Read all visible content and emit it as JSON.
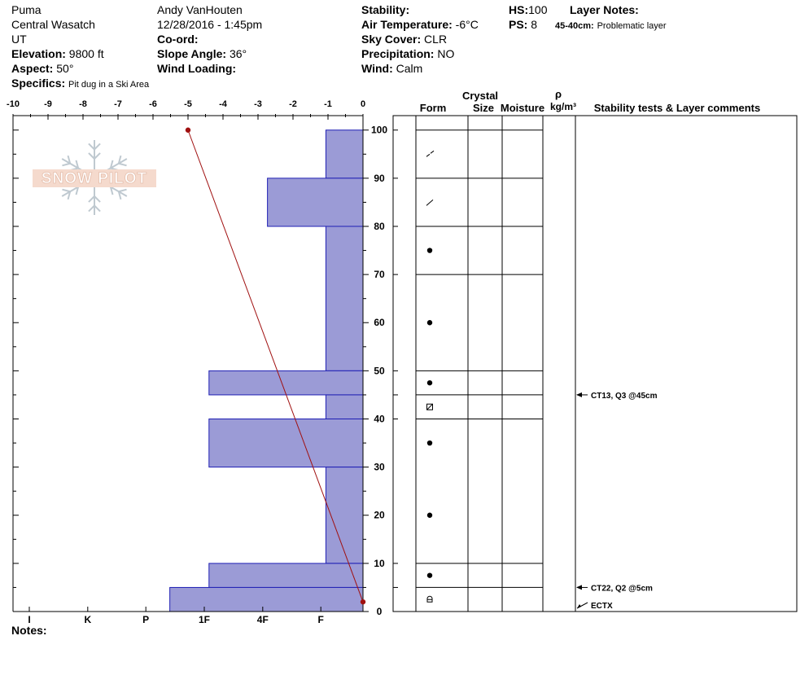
{
  "header": {
    "location": "Puma",
    "range": "Central Wasatch",
    "state": "UT",
    "elevation_label": "Elevation:",
    "elevation_value": "9800 ft",
    "aspect_label": "Aspect:",
    "aspect_value": "50°",
    "specifics_label": "Specifics:",
    "specifics_value": "Pit dug in a Ski Area",
    "observer": "Andy VanHouten",
    "datetime": "12/28/2016 - 1:45pm",
    "coord_label": "Co-ord:",
    "slope_label": "Slope Angle:",
    "slope_value": "36°",
    "wind_loading_label": "Wind Loading:",
    "stability_label": "Stability:",
    "air_temp_label": "Air Temperature:",
    "air_temp_value": "-6°C",
    "sky_label": "Sky Cover:",
    "sky_value": "CLR",
    "precip_label": "Precipitation:",
    "precip_value": "NO",
    "wind_label": "Wind:",
    "wind_value": "Calm",
    "hs_label": "HS:",
    "hs_value": "100",
    "ps_label": "PS:",
    "ps_value": "8",
    "layer_notes_label": "Layer Notes:",
    "layer_note_depth": "45-40cm:",
    "layer_note_text": "Problematic layer"
  },
  "columns": {
    "crystal": "Crystal",
    "form": "Form",
    "size": "Size",
    "moisture": "Moisture",
    "rho": "ρ",
    "density_unit": "kg/m³",
    "stability": "Stability tests & Layer comments"
  },
  "notes_label": "Notes:",
  "logo_text": "SNOW PILOT",
  "colors": {
    "hardness_fill": "#9b9bd6",
    "hardness_edge": "#1f1fb4",
    "temp_line": "#a01010"
  },
  "chart_data": {
    "type": "bar",
    "temp_axis": {
      "range": [
        -10,
        0
      ],
      "ticks": [
        "-10",
        "-9",
        "-8",
        "-7",
        "-6",
        "-5",
        "-4",
        "-3",
        "-2",
        "-1",
        "0"
      ]
    },
    "height_axis": {
      "range": [
        0,
        103
      ],
      "ticks": [
        "0",
        "10",
        "20",
        "30",
        "40",
        "50",
        "60",
        "70",
        "80",
        "90",
        "100"
      ]
    },
    "hardness_axis": {
      "labels": [
        "I",
        "K",
        "P",
        "1F",
        "4F",
        "F"
      ],
      "values": [
        10,
        8.33,
        6.67,
        5,
        3.33,
        1.67
      ]
    },
    "hardness_layers": [
      {
        "top": 100,
        "bottom": 90,
        "hardness": 1.06
      },
      {
        "top": 90,
        "bottom": 80,
        "hardness": 2.73
      },
      {
        "top": 80,
        "bottom": 50,
        "hardness": 1.06
      },
      {
        "top": 50,
        "bottom": 45,
        "hardness": 4.4
      },
      {
        "top": 45,
        "bottom": 40,
        "hardness": 1.06
      },
      {
        "top": 40,
        "bottom": 30,
        "hardness": 4.4
      },
      {
        "top": 30,
        "bottom": 10,
        "hardness": 1.06
      },
      {
        "top": 10,
        "bottom": 5,
        "hardness": 4.4
      },
      {
        "top": 5,
        "bottom": 0,
        "hardness": 5.52
      }
    ],
    "temperature_profile": [
      {
        "height": 100,
        "temp": -5
      },
      {
        "height": 2,
        "temp": 0
      }
    ],
    "layer_boundaries": [
      100,
      90,
      80,
      70,
      50,
      45,
      40,
      10,
      5
    ],
    "grain_marks": [
      {
        "height": 95,
        "symbol": "dash-slash"
      },
      {
        "height": 85,
        "symbol": "slash"
      },
      {
        "height": 75,
        "symbol": "dot"
      },
      {
        "height": 60,
        "symbol": "dot"
      },
      {
        "height": 47.5,
        "symbol": "dot"
      },
      {
        "height": 42.5,
        "symbol": "square-slash"
      },
      {
        "height": 35,
        "symbol": "dot"
      },
      {
        "height": 20,
        "symbol": "dot"
      },
      {
        "height": 7.5,
        "symbol": "dot"
      },
      {
        "height": 2.5,
        "symbol": "cup"
      }
    ],
    "stability_tests": [
      {
        "height": 45,
        "text": "CT13, Q3 @45cm"
      },
      {
        "height": 5,
        "text": "CT22, Q2 @5cm"
      },
      {
        "height": 0,
        "text": "ECTX"
      }
    ]
  }
}
